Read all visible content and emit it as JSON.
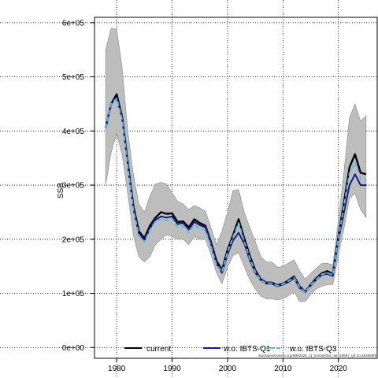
{
  "chart_data": {
    "type": "line",
    "title": "",
    "xlabel": "",
    "ylabel": "SSB",
    "xlim": [
      1976,
      2027
    ],
    "ylim": [
      -20000,
      610000
    ],
    "grid": true,
    "legend_position": "bottom",
    "footnote": "stockassessment.org/IBM2026_11_kssVarObs_a8.r19687_git 1cc464b80f6",
    "x_ticks": [
      {
        "value": 1980,
        "label": "1980"
      },
      {
        "value": 1990,
        "label": "1990"
      },
      {
        "value": 2000,
        "label": "2000"
      },
      {
        "value": 2010,
        "label": "2010"
      },
      {
        "value": 2020,
        "label": "2020"
      }
    ],
    "y_ticks": [
      {
        "value": 0,
        "label": "0e+00"
      },
      {
        "value": 100000,
        "label": "1e+05"
      },
      {
        "value": 200000,
        "label": "2e+05"
      },
      {
        "value": 300000,
        "label": "3e+05"
      },
      {
        "value": 400000,
        "label": "4e+05"
      },
      {
        "value": 500000,
        "label": "5e+05"
      },
      {
        "value": 600000,
        "label": "6e+05"
      }
    ],
    "x": [
      1978,
      1979,
      1980,
      1981,
      1982,
      1983,
      1984,
      1985,
      1986,
      1987,
      1988,
      1989,
      1990,
      1991,
      1992,
      1993,
      1994,
      1995,
      1996,
      1997,
      1998,
      1999,
      2000,
      2001,
      2002,
      2003,
      2004,
      2005,
      2006,
      2007,
      2008,
      2009,
      2010,
      2011,
      2012,
      2013,
      2014,
      2015,
      2016,
      2017,
      2018,
      2019,
      2020,
      2021,
      2022,
      2023,
      2024,
      2025
    ],
    "band": {
      "upper": [
        550000,
        590000,
        588000,
        515000,
        400000,
        320000,
        265000,
        250000,
        280000,
        302000,
        305000,
        302000,
        285000,
        270000,
        265000,
        255000,
        262000,
        258000,
        252000,
        222000,
        190000,
        215000,
        250000,
        290000,
        292000,
        250000,
        222000,
        196000,
        168000,
        158000,
        158000,
        148000,
        150000,
        156000,
        162000,
        142000,
        126000,
        137000,
        146000,
        155000,
        156000,
        152000,
        235000,
        325000,
        425000,
        450000,
        418000,
        428000
      ],
      "lower": [
        300000,
        360000,
        395000,
        355000,
        285000,
        208000,
        168000,
        158000,
        168000,
        190000,
        200000,
        208000,
        205000,
        200000,
        200000,
        190000,
        205000,
        200000,
        200000,
        172000,
        138000,
        118000,
        148000,
        170000,
        175000,
        150000,
        125000,
        108000,
        95000,
        90000,
        90000,
        88000,
        90000,
        96000,
        103000,
        85000,
        85000,
        98000,
        108000,
        113000,
        116000,
        116000,
        170000,
        220000,
        275000,
        285000,
        255000,
        240000
      ]
    },
    "series": [
      {
        "name": "current",
        "color": "#000000",
        "dash": "none",
        "values": [
          405000,
          450000,
          468000,
          425000,
          342000,
          262000,
          215000,
          202000,
          225000,
          240000,
          250000,
          247000,
          248000,
          232000,
          233000,
          222000,
          237000,
          230000,
          225000,
          195000,
          160000,
          143000,
          180000,
          208000,
          237000,
          202000,
          170000,
          143000,
          126000,
          120000,
          120000,
          115000,
          118000,
          124000,
          131000,
          113000,
          103000,
          116000,
          128000,
          137000,
          141000,
          136000,
          205000,
          268000,
          333000,
          357000,
          323000,
          320000
        ]
      },
      {
        "name": "w.o. IBTS-Q1",
        "color": "#1a1a80",
        "dash": "none",
        "values": [
          405000,
          450000,
          462000,
          423000,
          338000,
          257000,
          210000,
          198000,
          220000,
          236000,
          242000,
          240000,
          242000,
          228000,
          230000,
          218000,
          232000,
          226000,
          222000,
          192000,
          155000,
          138000,
          172000,
          198000,
          212000,
          192000,
          162000,
          138000,
          124000,
          118000,
          118000,
          113000,
          116000,
          121000,
          128000,
          110000,
          102000,
          114000,
          125000,
          134000,
          136000,
          132000,
          198000,
          250000,
          300000,
          320000,
          300000,
          300000
        ]
      },
      {
        "name": "w.o. IBTS-Q3",
        "color": "#5bbbe8",
        "dash": "6,3",
        "values": [
          405000,
          450000,
          460000,
          420000,
          335000,
          255000,
          207000,
          195000,
          217000,
          233000,
          237000,
          235000,
          238000,
          223000,
          224000,
          212000,
          226000,
          220000,
          216000,
          187000,
          152000,
          140000,
          176000,
          204000,
          230000,
          196000,
          165000,
          140000,
          124000,
          119000,
          119000,
          114000,
          117000,
          123000,
          129000,
          112000,
          102000,
          115000,
          126000,
          135000,
          138000,
          134000,
          202000,
          262000,
          322000,
          342000,
          312000,
          308000
        ]
      }
    ]
  }
}
